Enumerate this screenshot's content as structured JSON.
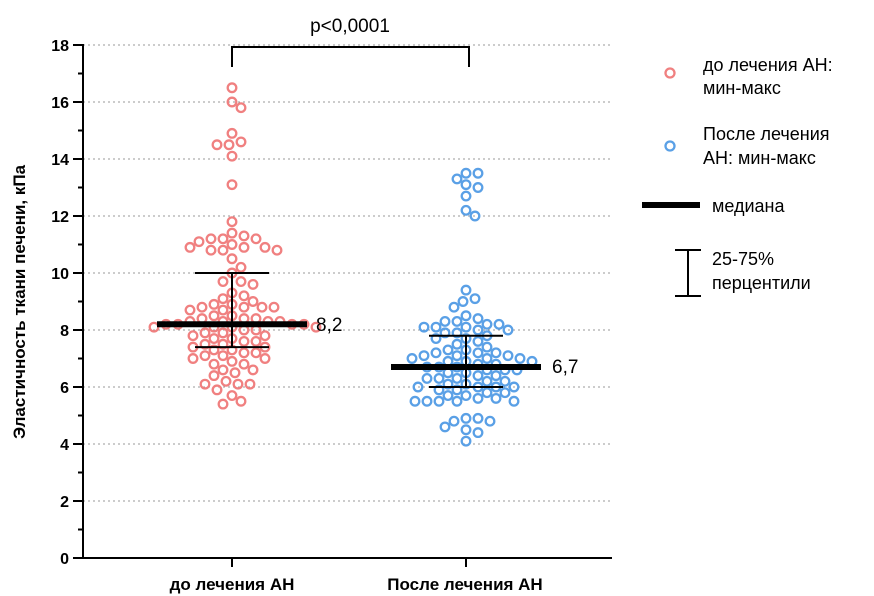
{
  "chart_data": {
    "type": "scatter",
    "ylabel": "Эластичность ткани печени, кПа",
    "ylim": [
      0,
      18
    ],
    "yticks": [
      "0",
      "2",
      "4",
      "6",
      "8",
      "10",
      "12",
      "14",
      "16",
      "18"
    ],
    "grid": "horizontal dotted",
    "categories": [
      "до лечения АН",
      "После лечения АН"
    ],
    "significance": "p<0,0001",
    "series": [
      {
        "name": "до лечения АН: мин-макс",
        "color": "#f08080",
        "median": 8.2,
        "median_label": "8,2",
        "q1": 7.4,
        "q3": 10.0,
        "values": [
          16.5,
          16.0,
          15.8,
          14.9,
          14.6,
          14.5,
          14.5,
          14.1,
          13.1,
          11.8,
          11.4,
          11.3,
          11.2,
          11.2,
          11.2,
          11.1,
          11.0,
          10.9,
          10.9,
          10.9,
          10.8,
          10.8,
          10.8,
          10.5,
          10.2,
          10.0,
          9.7,
          9.7,
          9.6,
          9.3,
          9.2,
          9.1,
          9.0,
          8.9,
          8.9,
          8.8,
          8.8,
          8.8,
          8.8,
          8.7,
          8.7,
          8.5,
          8.5,
          8.4,
          8.4,
          8.4,
          8.3,
          8.3,
          8.3,
          8.3,
          8.2,
          8.2,
          8.2,
          8.2,
          8.1,
          8.1,
          8.1,
          8.1,
          8.0,
          8.0,
          7.9,
          7.9,
          7.8,
          7.8,
          7.7,
          7.7,
          7.6,
          7.6,
          7.5,
          7.5,
          7.4,
          7.4,
          7.3,
          7.3,
          7.2,
          7.2,
          7.1,
          7.1,
          7.0,
          7.0,
          6.9,
          6.8,
          6.8,
          6.6,
          6.6,
          6.5,
          6.4,
          6.2,
          6.1,
          6.1,
          6.1,
          5.9,
          5.7,
          5.5,
          5.4
        ]
      },
      {
        "name": "После лечения АН: мин-макс",
        "color": "#5aa0e6",
        "median": 6.7,
        "median_label": "6,7",
        "q1": 6.0,
        "q3": 7.8,
        "values": [
          13.5,
          13.5,
          13.3,
          13.1,
          13.0,
          12.7,
          12.2,
          12.0,
          9.4,
          9.1,
          9.0,
          8.8,
          8.5,
          8.4,
          8.3,
          8.3,
          8.2,
          8.2,
          8.1,
          8.1,
          8.1,
          8.0,
          8.0,
          7.9,
          7.9,
          7.8,
          7.7,
          7.7,
          7.6,
          7.5,
          7.4,
          7.3,
          7.3,
          7.2,
          7.2,
          7.2,
          7.1,
          7.1,
          7.1,
          7.0,
          7.0,
          7.0,
          6.9,
          6.9,
          6.9,
          6.8,
          6.8,
          6.7,
          6.7,
          6.7,
          6.6,
          6.6,
          6.6,
          6.5,
          6.5,
          6.4,
          6.4,
          6.3,
          6.3,
          6.3,
          6.2,
          6.2,
          6.1,
          6.1,
          6.0,
          6.0,
          6.0,
          6.0,
          5.9,
          5.9,
          5.8,
          5.8,
          5.7,
          5.7,
          5.6,
          5.6,
          5.5,
          5.5,
          5.5,
          5.5,
          5.5,
          4.9,
          4.9,
          4.8,
          4.8,
          4.6,
          4.5,
          4.4,
          4.1
        ]
      }
    ]
  },
  "legend": {
    "before_label": "до лечения АН:\nмин-макс",
    "after_label": "После лечения\nАН: мин-макс",
    "median_label": "медиана",
    "iqr_label": "25-75%\nперцентили"
  },
  "colors": {
    "before": "#f08080",
    "after": "#5aa0e6",
    "grid": "#9a9a9a"
  }
}
